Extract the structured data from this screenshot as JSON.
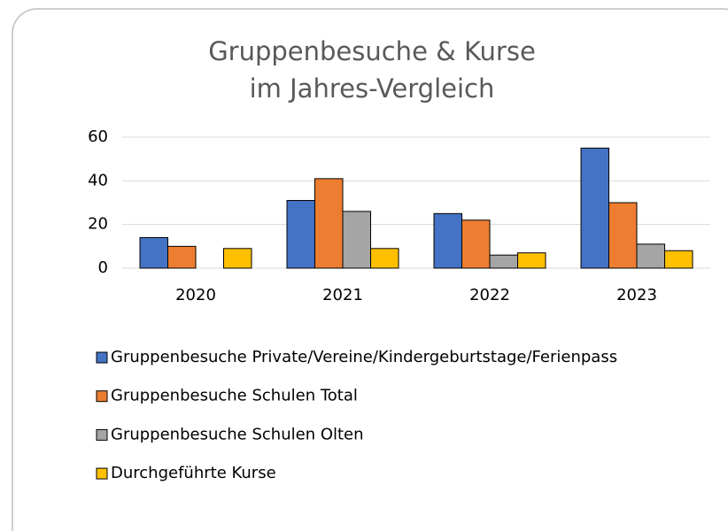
{
  "chart_data": {
    "type": "bar",
    "title": [
      "Gruppenbesuche & Kurse",
      "im Jahres-Vergleich"
    ],
    "categories": [
      "2020",
      "2021",
      "2022",
      "2023"
    ],
    "series": [
      {
        "name": "Gruppenbesuche Private/Vereine/Kindergeburtstage/Ferienpass",
        "color": "#4472c4",
        "values": [
          14,
          31,
          25,
          55
        ]
      },
      {
        "name": "Gruppenbesuche Schulen Total",
        "color": "#ed7d31",
        "values": [
          10,
          41,
          22,
          30
        ]
      },
      {
        "name": "Gruppenbesuche Schulen Olten",
        "color": "#a5a5a5",
        "values": [
          0,
          26,
          6,
          11
        ]
      },
      {
        "name": "Durchgeführte Kurse",
        "color": "#ffc000",
        "values": [
          9,
          9,
          7,
          8
        ]
      }
    ],
    "ylim": [
      0,
      60
    ],
    "yticks": [
      0,
      20,
      40,
      60
    ],
    "grid": true,
    "legend": "bottom"
  }
}
